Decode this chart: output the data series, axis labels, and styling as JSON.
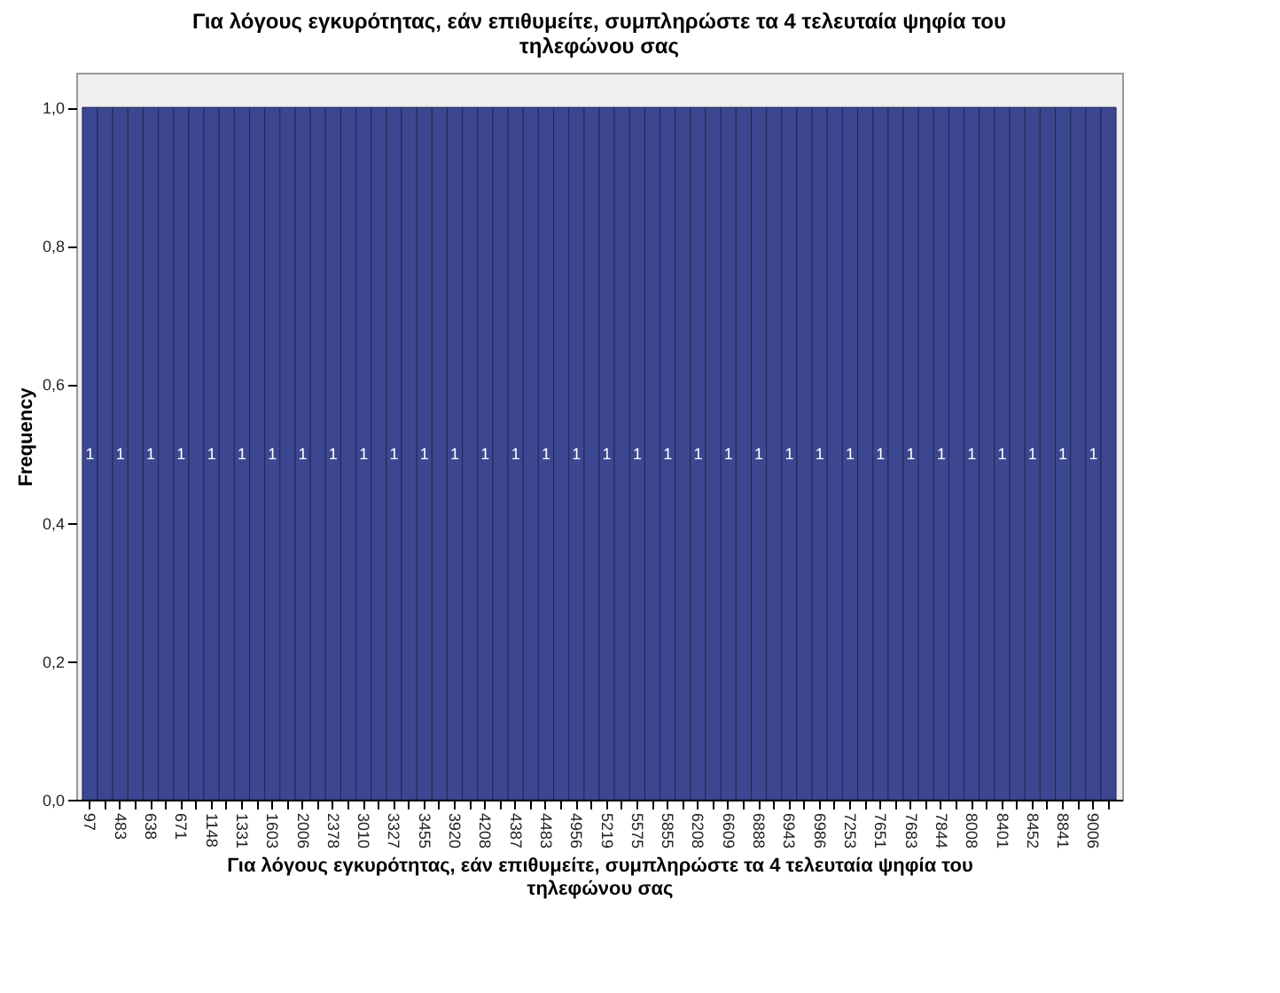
{
  "chart_data": {
    "type": "bar",
    "title": "Για λόγους εγκυρότητας, εάν επιθυμείτε, συμπληρώστε τα 4 τελευταία ψηφία του τηλεφώνου σας",
    "xlabel": "Για λόγους εγκυρότητας, εάν επιθυμείτε, συμπληρώστε τα 4 τελευταία ψηφία του τηλεφώνου σας",
    "ylabel": "Frequency",
    "categories": [
      "97",
      null,
      "483",
      null,
      "638",
      null,
      "671",
      null,
      "1148",
      null,
      "1331",
      null,
      "1603",
      null,
      "2006",
      null,
      "2378",
      null,
      "3010",
      null,
      "3327",
      null,
      "3455",
      null,
      "3920",
      null,
      "4208",
      null,
      "4387",
      null,
      "4483",
      null,
      "4956",
      null,
      "5219",
      null,
      "5575",
      null,
      "5855",
      null,
      "6208",
      null,
      "6609",
      null,
      "6888",
      null,
      "6943",
      null,
      "6986",
      null,
      "7253",
      null,
      "7651",
      null,
      "7683",
      null,
      "7844",
      null,
      "8008",
      null,
      "8401",
      null,
      "8452",
      null,
      "8841",
      null,
      "9006",
      null
    ],
    "values": [
      1,
      1,
      1,
      1,
      1,
      1,
      1,
      1,
      1,
      1,
      1,
      1,
      1,
      1,
      1,
      1,
      1,
      1,
      1,
      1,
      1,
      1,
      1,
      1,
      1,
      1,
      1,
      1,
      1,
      1,
      1,
      1,
      1,
      1,
      1,
      1,
      1,
      1,
      1,
      1,
      1,
      1,
      1,
      1,
      1,
      1,
      1,
      1,
      1,
      1,
      1,
      1,
      1,
      1,
      1,
      1,
      1,
      1,
      1,
      1,
      1,
      1,
      1,
      1,
      1,
      1,
      1,
      1
    ],
    "value_labels": [
      "1",
      null,
      "1",
      null,
      "1",
      null,
      "1",
      null,
      "1",
      null,
      "1",
      null,
      "1",
      null,
      "1",
      null,
      "1",
      null,
      "1",
      null,
      "1",
      null,
      "1",
      null,
      "1",
      null,
      "1",
      null,
      "1",
      null,
      "1",
      null,
      "1",
      null,
      "1",
      null,
      "1",
      null,
      "1",
      null,
      "1",
      null,
      "1",
      null,
      "1",
      null,
      "1",
      null,
      "1",
      null,
      "1",
      null,
      "1",
      null,
      "1",
      null,
      "1",
      null,
      "1",
      null,
      "1",
      null,
      "1",
      null,
      "1",
      null,
      "1",
      null
    ],
    "color": "#3b4790",
    "ylim": [
      0,
      1.05
    ],
    "yticks": [
      {
        "value": 0,
        "label": "0,0"
      },
      {
        "value": 0.2,
        "label": "0,2"
      },
      {
        "value": 0.4,
        "label": "0,4"
      },
      {
        "value": 0.6,
        "label": "0,6"
      },
      {
        "value": 0.8,
        "label": "0,8"
      },
      {
        "value": 1,
        "label": "1,0"
      }
    ],
    "grid": false
  }
}
